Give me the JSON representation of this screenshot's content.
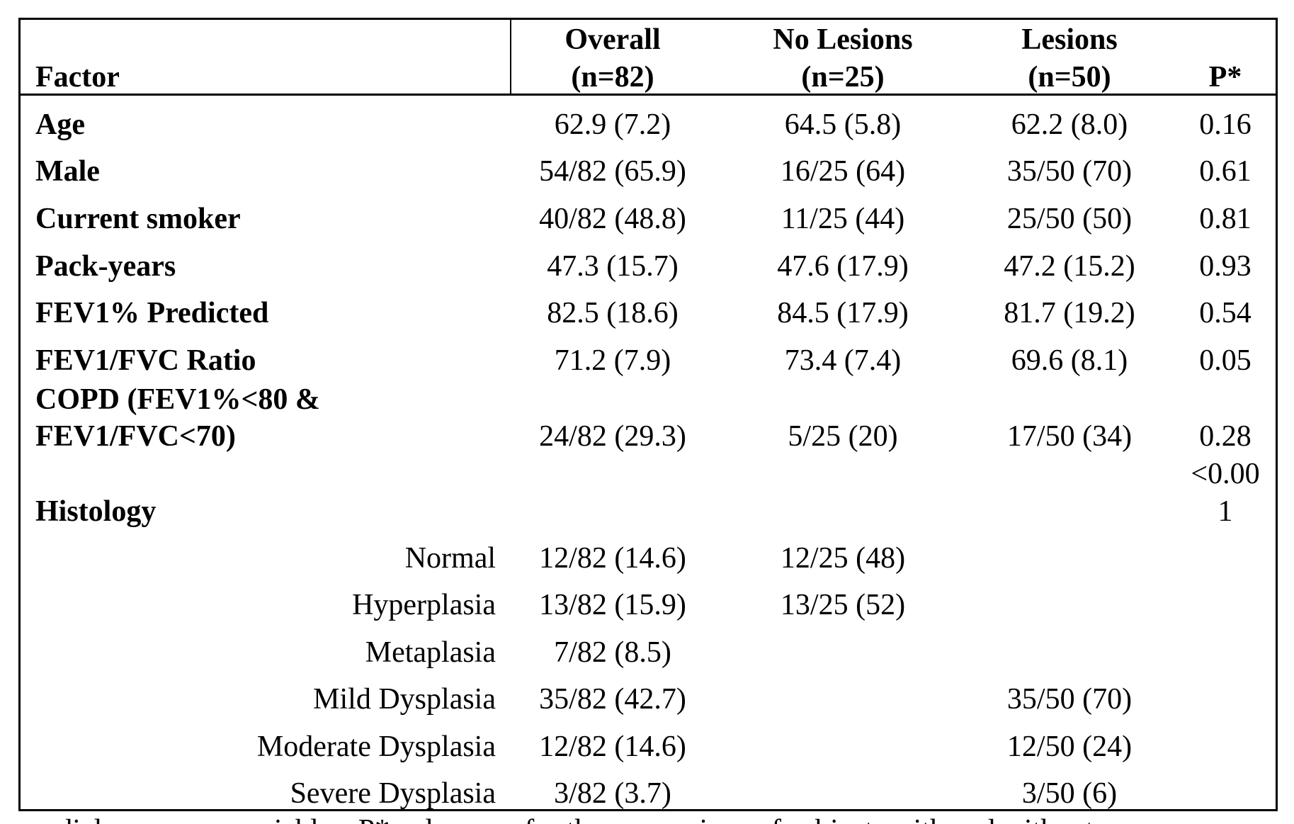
{
  "table": {
    "headers": {
      "factor": "Factor",
      "overall": [
        "Overall",
        "(n=82)"
      ],
      "no_lesions": [
        "No Lesions",
        "(n=25)"
      ],
      "lesions": [
        "Lesions",
        "(n=50)"
      ],
      "p": "P*"
    },
    "rows": [
      {
        "factor": "Age",
        "overall": "62.9 (7.2)",
        "no_lesions": "64.5 (5.8)",
        "lesions": "62.2 (8.0)",
        "p": "0.16"
      },
      {
        "factor": "Male",
        "overall": "54/82 (65.9)",
        "no_lesions": "16/25 (64)",
        "lesions": "35/50 (70)",
        "p": "0.61"
      },
      {
        "factor": "Current smoker",
        "overall": "40/82 (48.8)",
        "no_lesions": "11/25 (44)",
        "lesions": "25/50 (50)",
        "p": "0.81"
      },
      {
        "factor": "Pack-years",
        "overall": "47.3 (15.7)",
        "no_lesions": "47.6 (17.9)",
        "lesions": "47.2 (15.2)",
        "p": "0.93"
      },
      {
        "factor": "FEV1% Predicted",
        "overall": "82.5 (18.6)",
        "no_lesions": "84.5 (17.9)",
        "lesions": "81.7 (19.2)",
        "p": "0.54"
      },
      {
        "factor": "FEV1/FVC Ratio",
        "overall": "71.2 (7.9)",
        "no_lesions": "73.4 (7.4)",
        "lesions": "69.6 (8.1)",
        "p": "0.05"
      }
    ],
    "copd": {
      "factor": [
        "COPD (FEV1%<80 &",
        "FEV1/FVC<70)"
      ],
      "overall": "24/82 (29.3)",
      "no_lesions": "5/25 (20)",
      "lesions": "17/50 (34)",
      "p": "0.28"
    },
    "histology": {
      "factor": "Histology",
      "p": [
        "<0.00",
        "1"
      ],
      "subrows": [
        {
          "label": "Normal",
          "overall": "12/82 (14.6)",
          "no_lesions": "12/25 (48)",
          "lesions": ""
        },
        {
          "label": "Hyperplasia",
          "overall": "13/82 (15.9)",
          "no_lesions": "13/25 (52)",
          "lesions": ""
        },
        {
          "label": "Metaplasia",
          "overall": "7/82 (8.5)",
          "no_lesions": "",
          "lesions": ""
        },
        {
          "label": "Mild Dysplasia",
          "overall": "35/82 (42.7)",
          "no_lesions": "",
          "lesions": "35/50 (70)"
        },
        {
          "label": "Moderate Dysplasia",
          "overall": "12/82 (14.6)",
          "no_lesions": "",
          "lesions": "12/50 (24)"
        },
        {
          "label": "Severe Dysplasia",
          "overall": "3/82 (3.7)",
          "no_lesions": "",
          "lesions": "3/50 (6)"
        }
      ]
    }
  },
  "footnote": "medial measures; variables. P* values are for the comparison of subjects with and without"
}
